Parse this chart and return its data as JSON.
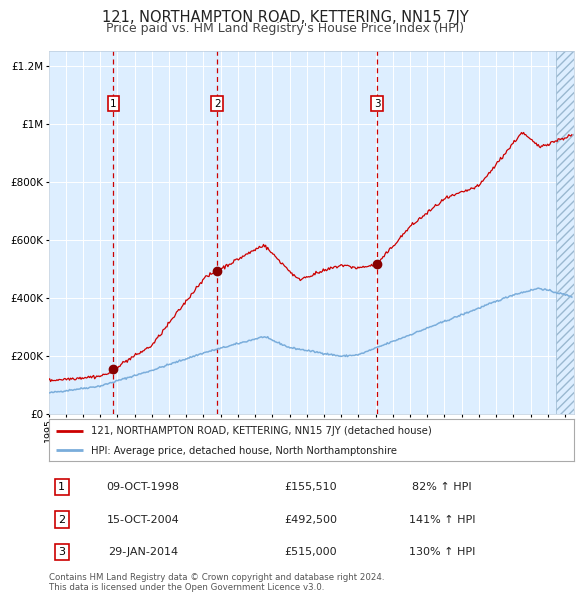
{
  "title": "121, NORTHAMPTON ROAD, KETTERING, NN15 7JY",
  "subtitle": "Price paid vs. HM Land Registry's House Price Index (HPI)",
  "title_fontsize": 10.5,
  "subtitle_fontsize": 9,
  "background_color": "#ffffff",
  "plot_bg_color": "#ddeeff",
  "grid_color": "#ffffff",
  "xmin": 1995.0,
  "xmax": 2025.5,
  "ymin": 0,
  "ymax": 1250000,
  "yticks": [
    0,
    200000,
    400000,
    600000,
    800000,
    1000000,
    1200000
  ],
  "ytick_labels": [
    "£0",
    "£200K",
    "£400K",
    "£600K",
    "£800K",
    "£1M",
    "£1.2M"
  ],
  "red_line_color": "#cc0000",
  "blue_line_color": "#7aaddb",
  "purchase_dates": [
    1998.77,
    2004.79,
    2014.08
  ],
  "purchase_prices": [
    155510,
    492500,
    515000
  ],
  "purchase_labels": [
    "1",
    "2",
    "3"
  ],
  "vline_color": "#cc0000",
  "marker_color": "#880000",
  "legend_red_label": "121, NORTHAMPTON ROAD, KETTERING, NN15 7JY (detached house)",
  "legend_blue_label": "HPI: Average price, detached house, North Northamptonshire",
  "table_data": [
    [
      "1",
      "09-OCT-1998",
      "£155,510",
      "82% ↑ HPI"
    ],
    [
      "2",
      "15-OCT-2004",
      "£492,500",
      "141% ↑ HPI"
    ],
    [
      "3",
      "29-JAN-2014",
      "£515,000",
      "130% ↑ HPI"
    ]
  ],
  "footer_text": "Contains HM Land Registry data © Crown copyright and database right 2024.\nThis data is licensed under the Open Government Licence v3.0."
}
